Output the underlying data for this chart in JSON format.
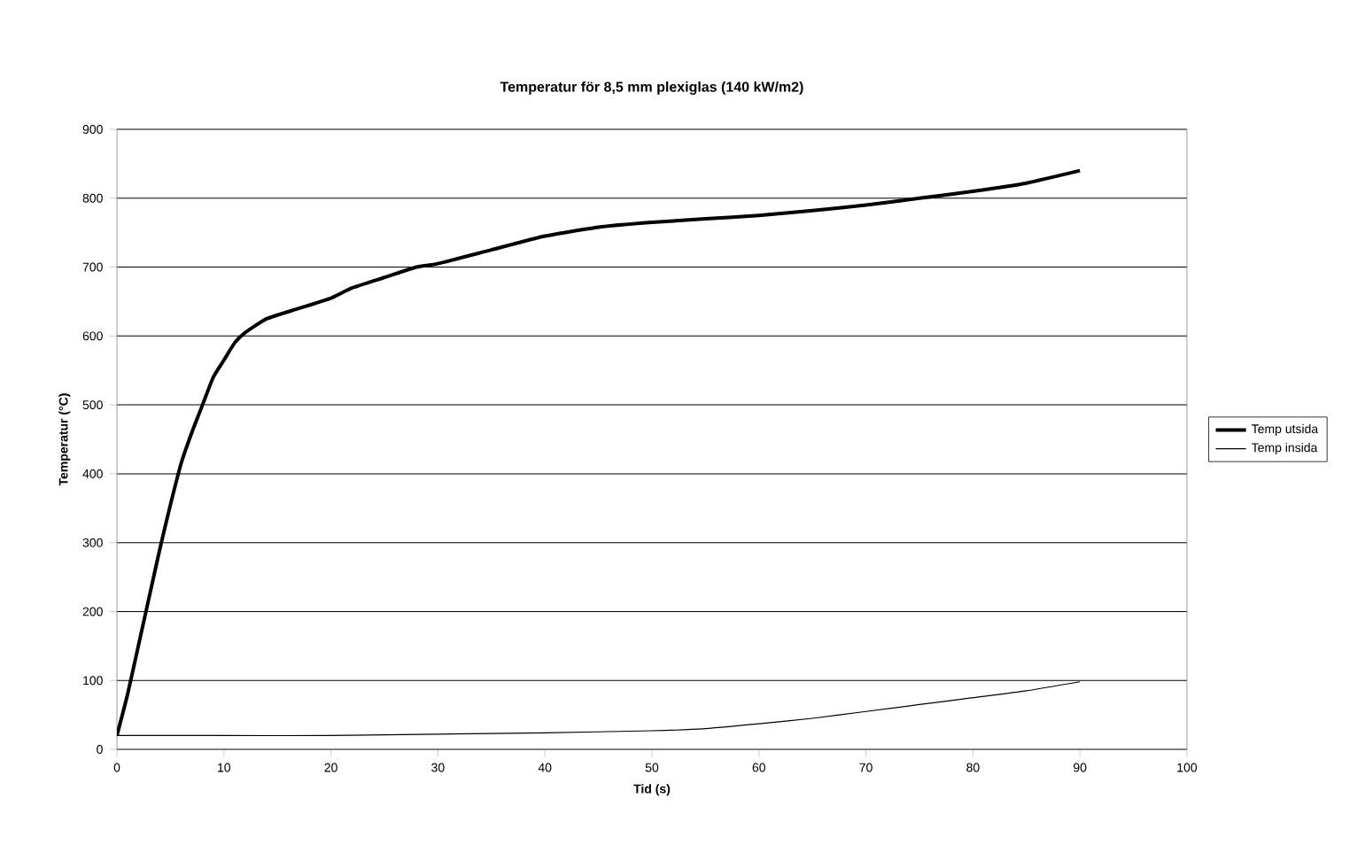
{
  "chart_data": {
    "type": "line",
    "title": "Temperatur för 8,5 mm plexiglas (140 kW/m2)",
    "xlabel": "Tid (s)",
    "ylabel": "Temperatur (°C)",
    "xlim": [
      0,
      100
    ],
    "xticks": [
      0,
      10,
      20,
      30,
      40,
      50,
      60,
      70,
      80,
      90,
      100
    ],
    "ylim": [
      0,
      900
    ],
    "yticks": [
      0,
      100,
      200,
      300,
      400,
      500,
      600,
      700,
      800,
      900
    ],
    "grid": "y",
    "legend": "right",
    "series": [
      {
        "name": "Temp utsida",
        "color": "#000000",
        "x": [
          0,
          1,
          2,
          3,
          4,
          5,
          6,
          7,
          8,
          9,
          10,
          11,
          12,
          14,
          17,
          20,
          22,
          25,
          28,
          30,
          35,
          40,
          45,
          50,
          55,
          60,
          65,
          70,
          75,
          80,
          85,
          90
        ],
        "values": [
          20,
          80,
          150,
          220,
          290,
          355,
          415,
          460,
          500,
          540,
          565,
          590,
          605,
          625,
          640,
          655,
          670,
          685,
          700,
          705,
          725,
          745,
          758,
          765,
          770,
          775,
          782,
          790,
          800,
          810,
          822,
          840
        ]
      },
      {
        "name": "Temp insida",
        "color": "#000000",
        "x": [
          0,
          10,
          20,
          30,
          40,
          50,
          55,
          60,
          65,
          70,
          75,
          80,
          85,
          90
        ],
        "values": [
          20,
          20,
          20,
          22,
          24,
          27,
          30,
          37,
          45,
          55,
          65,
          75,
          85,
          98
        ]
      }
    ]
  }
}
